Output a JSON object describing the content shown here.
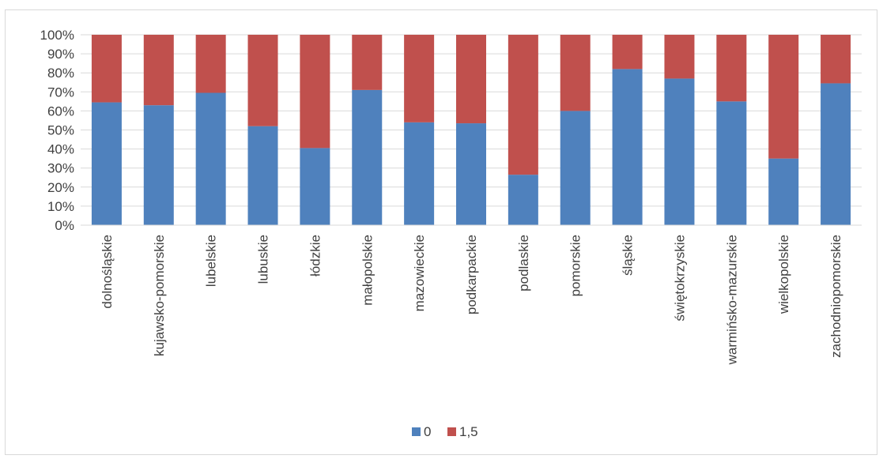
{
  "chart_data": {
    "type": "bar",
    "stacked": "percent",
    "categories": [
      "dolnośląskie",
      "kujawsko-pomorskie",
      "lubelskie",
      "lubuskie",
      "łódzkie",
      "małopolskie",
      "mazowieckie",
      "podkarpackie",
      "podlaskie",
      "pomorskie",
      "śląskie",
      "świętokrzyskie",
      "warmińsko-mazurskie",
      "wielkopolskie",
      "zachodniopomorskie"
    ],
    "series": [
      {
        "name": "0",
        "color": "#4f81bd",
        "values": [
          64.5,
          63,
          69.5,
          52,
          40.5,
          71,
          54,
          53.5,
          26.5,
          60,
          82,
          77,
          65,
          35,
          74.5
        ]
      },
      {
        "name": "1,5",
        "color": "#c0504d",
        "values": [
          35.5,
          37,
          30.5,
          48,
          59.5,
          29,
          46,
          46.5,
          73.5,
          40,
          18,
          23,
          35,
          65,
          25.5
        ]
      }
    ],
    "yticks": [
      "0%",
      "10%",
      "20%",
      "30%",
      "40%",
      "50%",
      "60%",
      "70%",
      "80%",
      "90%",
      "100%"
    ],
    "ylim": [
      0,
      100
    ],
    "grid": true,
    "legend_position": "bottom"
  }
}
